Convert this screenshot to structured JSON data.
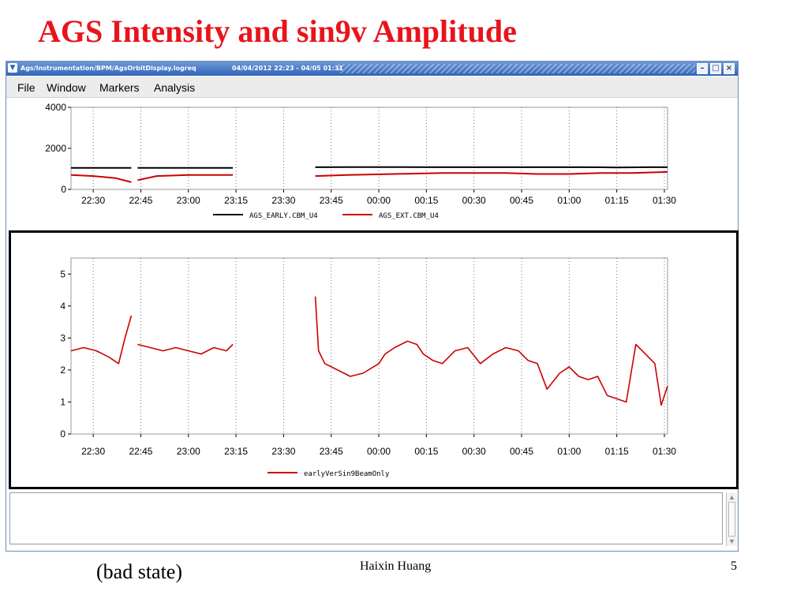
{
  "slide": {
    "title": "AGS Intensity and sin9v Amplitude",
    "note": "(bad state)",
    "author": "Haixin Huang",
    "page": "5",
    "title_color": "#e8141c"
  },
  "window": {
    "path": "Ags/Instrumentation/BPM/AgsOrbitDisplay.logreq",
    "date_range": "04/04/2012 22:23 - 04/05 01:31",
    "menu": [
      "File",
      "Window",
      "Markers",
      "Analysis"
    ],
    "titlebar_color": "#3a6fc1",
    "controls": [
      "minimize-icon",
      "maximize-icon",
      "close-icon"
    ]
  },
  "chart_data": [
    {
      "type": "line",
      "title": "",
      "xlabel": "",
      "ylabel": "",
      "x_ticks": [
        "22:30",
        "22:45",
        "23:00",
        "23:15",
        "23:30",
        "23:45",
        "00:00",
        "00:15",
        "00:30",
        "00:45",
        "01:00",
        "01:15",
        "01:30"
      ],
      "y_ticks": [
        "0",
        "2000",
        "4000"
      ],
      "xlim": [
        "22:23",
        "01:31"
      ],
      "ylim": [
        0,
        4000
      ],
      "grid": "vertical dotted",
      "legend_position": "bottom-center",
      "series": [
        {
          "name": "AGS_EARLY.CBM_U4",
          "color": "#000000",
          "x": [
            "22:23",
            "22:35",
            "22:42",
            "22:44",
            "22:58",
            "23:14",
            "23:40",
            "23:50",
            "00:05",
            "00:20",
            "00:40",
            "00:55",
            "01:05",
            "01:15",
            "01:25",
            "01:31"
          ],
          "values": [
            1050,
            1050,
            1050,
            1050,
            1050,
            1050,
            1080,
            1090,
            1090,
            1080,
            1080,
            1080,
            1080,
            1070,
            1080,
            1080
          ]
        },
        {
          "name": "AGS_EXT.CBM_U4",
          "color": "#cc0000",
          "x": [
            "22:23",
            "22:30",
            "22:37",
            "22:42",
            "22:44",
            "22:50",
            "23:00",
            "23:14",
            "23:40",
            "23:50",
            "00:05",
            "00:20",
            "00:40",
            "00:50",
            "01:00",
            "01:10",
            "01:20",
            "01:31"
          ],
          "values": [
            700,
            650,
            550,
            350,
            450,
            650,
            700,
            700,
            650,
            700,
            750,
            800,
            800,
            750,
            750,
            800,
            800,
            850
          ]
        }
      ],
      "gaps": [
        [
          "22:42",
          "22:44"
        ],
        [
          "23:14",
          "23:40"
        ]
      ]
    },
    {
      "type": "line",
      "title": "",
      "xlabel": "",
      "ylabel": "",
      "x_ticks": [
        "22:30",
        "22:45",
        "23:00",
        "23:15",
        "23:30",
        "23:45",
        "00:00",
        "00:15",
        "00:30",
        "00:45",
        "01:00",
        "01:15",
        "01:30"
      ],
      "y_ticks": [
        "0",
        "1",
        "2",
        "3",
        "4",
        "5"
      ],
      "xlim": [
        "22:23",
        "01:31"
      ],
      "ylim": [
        0,
        5.5
      ],
      "grid": "vertical dotted",
      "legend_position": "bottom-center",
      "series": [
        {
          "name": "earlyVerSin9BeamOnly",
          "color": "#cc0000",
          "x": [
            "22:23",
            "22:27",
            "22:31",
            "22:35",
            "22:38",
            "22:40",
            "22:42",
            "22:44",
            "22:48",
            "22:52",
            "22:56",
            "23:00",
            "23:04",
            "23:08",
            "23:12",
            "23:14",
            "23:40",
            "23:41",
            "23:43",
            "23:47",
            "23:51",
            "23:55",
            "24:00",
            "00:02",
            "00:05",
            "00:09",
            "00:12",
            "00:14",
            "00:17",
            "00:20",
            "00:24",
            "00:28",
            "00:32",
            "00:36",
            "00:40",
            "00:44",
            "00:47",
            "00:50",
            "00:53",
            "00:57",
            "01:00",
            "01:03",
            "01:06",
            "01:09",
            "01:12",
            "01:15",
            "01:18",
            "01:21",
            "01:24",
            "01:27",
            "01:29",
            "01:31"
          ],
          "values": [
            2.6,
            2.7,
            2.6,
            2.4,
            2.2,
            3.0,
            3.7,
            2.8,
            2.7,
            2.6,
            2.7,
            2.6,
            2.5,
            2.7,
            2.6,
            2.8,
            4.3,
            2.6,
            2.2,
            2.0,
            1.8,
            1.9,
            2.2,
            2.5,
            2.7,
            2.9,
            2.8,
            2.5,
            2.3,
            2.2,
            2.6,
            2.7,
            2.2,
            2.5,
            2.7,
            2.6,
            2.3,
            2.2,
            1.4,
            1.9,
            2.1,
            1.8,
            1.7,
            1.8,
            1.2,
            1.1,
            1.0,
            2.8,
            2.5,
            2.2,
            0.9,
            1.5
          ]
        }
      ],
      "gaps": [
        [
          "22:42",
          "22:44"
        ],
        [
          "23:14",
          "23:40"
        ]
      ]
    }
  ]
}
